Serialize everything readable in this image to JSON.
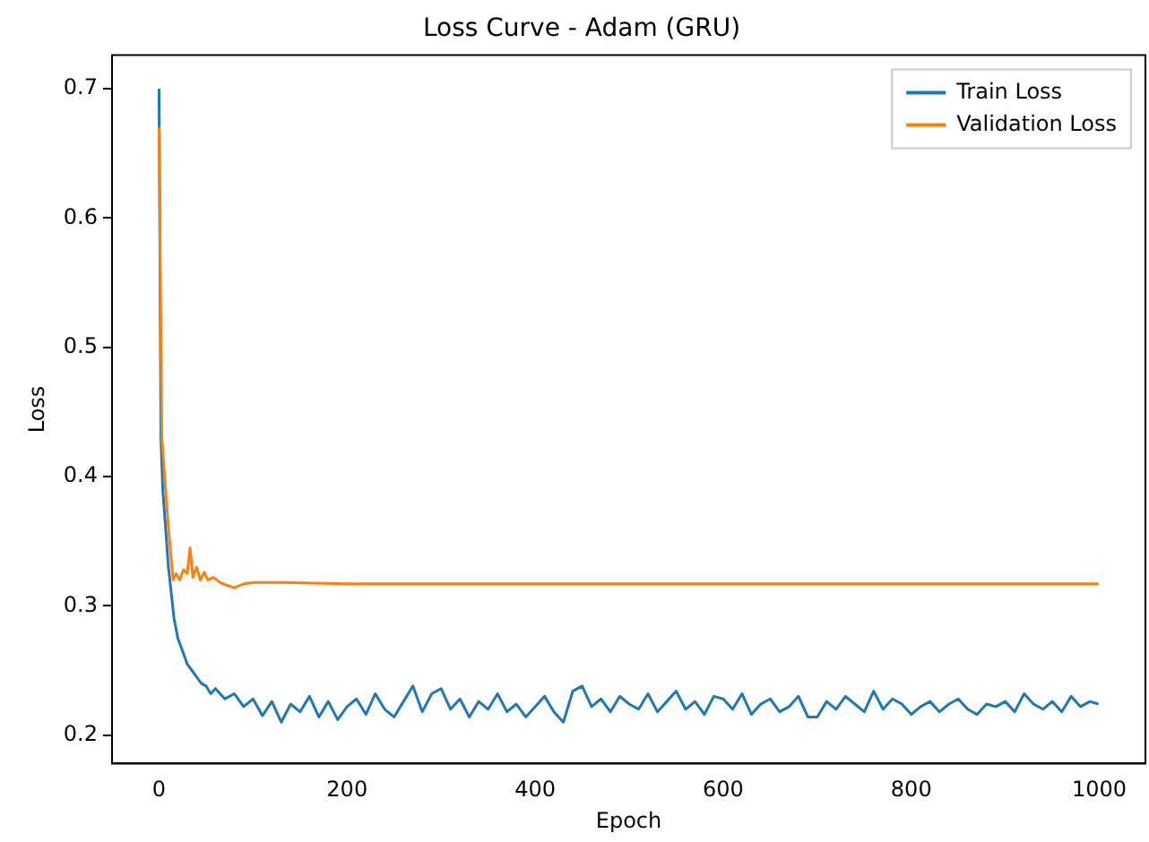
{
  "chart_data": {
    "type": "line",
    "title": "Loss Curve - Adam (GRU)",
    "xlabel": "Epoch",
    "ylabel": "Loss",
    "xlim": [
      -50,
      1049
    ],
    "xticks": [
      0,
      200,
      400,
      600,
      800,
      1000
    ],
    "ylim": [
      0.178,
      0.726
    ],
    "yticks": [
      0.2,
      0.3,
      0.4,
      0.5,
      0.6,
      0.7
    ],
    "legend": "top right",
    "grid": false,
    "marker": "none",
    "line_style": "solid",
    "series": [
      {
        "name": "Train Loss",
        "color": "#1f77b4",
        "x": [
          0,
          2,
          4,
          6,
          8,
          10,
          13,
          16,
          20,
          25,
          30,
          35,
          40,
          45,
          50,
          55,
          60,
          70,
          80,
          90,
          100,
          110,
          120,
          130,
          140,
          150,
          160,
          170,
          180,
          190,
          200,
          210,
          220,
          230,
          240,
          250,
          260,
          270,
          280,
          290,
          300,
          310,
          320,
          330,
          340,
          350,
          360,
          370,
          380,
          390,
          400,
          410,
          420,
          430,
          440,
          450,
          460,
          470,
          480,
          490,
          500,
          510,
          520,
          530,
          540,
          550,
          560,
          570,
          580,
          590,
          600,
          610,
          620,
          630,
          640,
          650,
          660,
          670,
          680,
          690,
          700,
          710,
          720,
          730,
          740,
          750,
          760,
          770,
          780,
          790,
          800,
          810,
          820,
          830,
          840,
          850,
          860,
          870,
          880,
          890,
          900,
          910,
          920,
          930,
          940,
          950,
          960,
          970,
          980,
          990,
          999
        ],
        "values": [
          0.7,
          0.43,
          0.39,
          0.37,
          0.35,
          0.33,
          0.31,
          0.29,
          0.275,
          0.265,
          0.255,
          0.25,
          0.245,
          0.24,
          0.238,
          0.232,
          0.236,
          0.228,
          0.232,
          0.222,
          0.228,
          0.215,
          0.226,
          0.21,
          0.224,
          0.218,
          0.23,
          0.214,
          0.226,
          0.212,
          0.222,
          0.228,
          0.216,
          0.232,
          0.22,
          0.214,
          0.226,
          0.238,
          0.218,
          0.232,
          0.236,
          0.22,
          0.228,
          0.214,
          0.226,
          0.22,
          0.232,
          0.218,
          0.224,
          0.214,
          0.222,
          0.23,
          0.218,
          0.21,
          0.234,
          0.238,
          0.222,
          0.228,
          0.218,
          0.23,
          0.224,
          0.22,
          0.232,
          0.218,
          0.226,
          0.234,
          0.22,
          0.226,
          0.216,
          0.23,
          0.228,
          0.22,
          0.232,
          0.216,
          0.224,
          0.228,
          0.218,
          0.222,
          0.23,
          0.214,
          0.214,
          0.226,
          0.22,
          0.23,
          0.224,
          0.218,
          0.234,
          0.22,
          0.228,
          0.224,
          0.216,
          0.222,
          0.226,
          0.218,
          0.224,
          0.228,
          0.22,
          0.216,
          0.224,
          0.222,
          0.226,
          0.218,
          0.232,
          0.224,
          0.22,
          0.226,
          0.218,
          0.23,
          0.222,
          0.226,
          0.224
        ]
      },
      {
        "name": "Validation Loss",
        "color": "#ff7f0e",
        "x": [
          0,
          3,
          6,
          10,
          15,
          18,
          22,
          26,
          30,
          33,
          36,
          40,
          44,
          48,
          52,
          58,
          65,
          72,
          80,
          90,
          100,
          130,
          200,
          400,
          600,
          800,
          999
        ],
        "values": [
          0.67,
          0.43,
          0.4,
          0.36,
          0.32,
          0.325,
          0.32,
          0.328,
          0.325,
          0.345,
          0.322,
          0.33,
          0.32,
          0.326,
          0.32,
          0.322,
          0.318,
          0.316,
          0.314,
          0.317,
          0.318,
          0.318,
          0.317,
          0.317,
          0.317,
          0.317,
          0.317
        ]
      }
    ]
  }
}
